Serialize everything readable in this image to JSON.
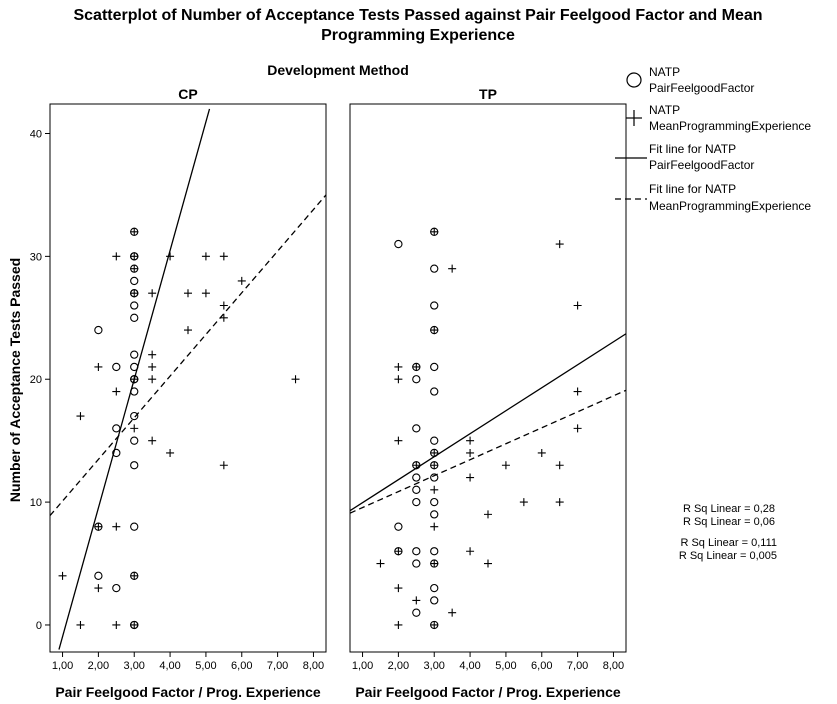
{
  "chart_data": {
    "type": "scatter",
    "title_line1": "Scatterplot of Number of Acceptance Tests Passed against Pair Feelgood Factor and Mean",
    "title_line2": "Programming Experience",
    "facet_label": "Development Method",
    "xlabel": "Pair Feelgood Factor / Prog. Experience",
    "ylabel": "Number of Acceptance Tests Passed",
    "xlim": [
      0.65,
      8.35
    ],
    "ylim": [
      -2.2,
      42.4
    ],
    "xticks": [
      "1,00",
      "2,00",
      "3,00",
      "4,00",
      "5,00",
      "6,00",
      "7,00",
      "8,00"
    ],
    "yticks": [
      "0",
      "10",
      "20",
      "30",
      "40"
    ],
    "legend": {
      "position": "right",
      "items": [
        {
          "line1": "NATP",
          "line2": "PairFeelgoodFactor",
          "marker": "circle"
        },
        {
          "line1": "NATP",
          "line2": "MeanProgrammingExperience",
          "marker": "plus"
        },
        {
          "line1": "Fit line for NATP",
          "line2": "PairFeelgoodFactor",
          "marker": "solid-line"
        },
        {
          "line1": "Fit line for NATP",
          "line2": "MeanProgrammingExperience",
          "marker": "dashed-line"
        }
      ]
    },
    "rsq": [
      "R Sq Linear = 0,28",
      "R Sq Linear = 0,06",
      "R Sq Linear = 0,111",
      "R Sq Linear = 0,005"
    ],
    "panels": [
      {
        "name": "CP",
        "series": [
          {
            "marker": "circle",
            "points": [
              [
                2,
                24
              ],
              [
                2,
                4
              ],
              [
                2,
                8
              ],
              [
                2.5,
                21
              ],
              [
                2.5,
                16
              ],
              [
                2.5,
                14
              ],
              [
                2.5,
                3
              ],
              [
                3,
                32
              ],
              [
                3,
                30
              ],
              [
                3,
                30
              ],
              [
                3,
                29
              ],
              [
                3,
                28
              ],
              [
                3,
                27
              ],
              [
                3,
                27
              ],
              [
                3,
                26
              ],
              [
                3,
                25
              ],
              [
                3,
                22
              ],
              [
                3,
                21
              ],
              [
                3,
                20
              ],
              [
                3,
                20
              ],
              [
                3,
                19
              ],
              [
                3,
                17
              ],
              [
                3,
                15
              ],
              [
                3,
                13
              ],
              [
                3,
                8
              ],
              [
                3,
                4
              ],
              [
                3,
                0
              ],
              [
                3,
                0
              ]
            ]
          },
          {
            "marker": "plus",
            "points": [
              [
                1,
                4
              ],
              [
                1.5,
                17
              ],
              [
                1.5,
                0
              ],
              [
                2,
                21
              ],
              [
                2,
                8
              ],
              [
                2,
                3
              ],
              [
                2.5,
                30
              ],
              [
                2.5,
                19
              ],
              [
                2.5,
                8
              ],
              [
                2.5,
                0
              ],
              [
                3,
                32
              ],
              [
                3,
                30
              ],
              [
                3,
                29
              ],
              [
                3,
                27
              ],
              [
                3,
                20
              ],
              [
                3,
                16
              ],
              [
                3,
                4
              ],
              [
                3,
                0
              ],
              [
                3.5,
                27
              ],
              [
                3.5,
                22
              ],
              [
                3.5,
                21
              ],
              [
                3.5,
                20
              ],
              [
                3.5,
                15
              ],
              [
                4,
                30
              ],
              [
                4,
                14
              ],
              [
                4.5,
                27
              ],
              [
                4.5,
                24
              ],
              [
                5,
                30
              ],
              [
                5,
                27
              ],
              [
                5.5,
                30
              ],
              [
                5.5,
                26
              ],
              [
                5.5,
                25
              ],
              [
                5.5,
                13
              ],
              [
                6,
                28
              ],
              [
                7.5,
                20
              ]
            ]
          }
        ],
        "fits": [
          {
            "style": "solid",
            "from": [
              0.9,
              -2
            ],
            "to": [
              5.1,
              42
            ]
          },
          {
            "style": "dashed",
            "from": [
              0.65,
              8.9
            ],
            "to": [
              8.35,
              35
            ]
          }
        ]
      },
      {
        "name": "TP",
        "series": [
          {
            "marker": "circle",
            "points": [
              [
                2,
                31
              ],
              [
                2,
                8
              ],
              [
                2,
                6
              ],
              [
                2.5,
                21
              ],
              [
                2.5,
                20
              ],
              [
                2.5,
                16
              ],
              [
                2.5,
                13
              ],
              [
                2.5,
                12
              ],
              [
                2.5,
                11
              ],
              [
                2.5,
                10
              ],
              [
                2.5,
                6
              ],
              [
                2.5,
                5
              ],
              [
                2.5,
                1
              ],
              [
                3,
                32
              ],
              [
                3,
                29
              ],
              [
                3,
                26
              ],
              [
                3,
                24
              ],
              [
                3,
                21
              ],
              [
                3,
                19
              ],
              [
                3,
                15
              ],
              [
                3,
                14
              ],
              [
                3,
                13
              ],
              [
                3,
                12
              ],
              [
                3,
                10
              ],
              [
                3,
                9
              ],
              [
                3,
                6
              ],
              [
                3,
                5
              ],
              [
                3,
                3
              ],
              [
                3,
                2
              ],
              [
                3,
                0
              ]
            ]
          },
          {
            "marker": "plus",
            "points": [
              [
                1.5,
                5
              ],
              [
                2,
                21
              ],
              [
                2,
                20
              ],
              [
                2,
                15
              ],
              [
                2,
                6
              ],
              [
                2,
                3
              ],
              [
                2,
                0
              ],
              [
                2.5,
                21
              ],
              [
                2.5,
                13
              ],
              [
                2.5,
                2
              ],
              [
                3,
                32
              ],
              [
                3,
                24
              ],
              [
                3,
                14
              ],
              [
                3,
                13
              ],
              [
                3,
                11
              ],
              [
                3,
                8
              ],
              [
                3,
                5
              ],
              [
                3,
                0
              ],
              [
                3.5,
                29
              ],
              [
                3.5,
                1
              ],
              [
                4,
                15
              ],
              [
                4,
                14
              ],
              [
                4,
                12
              ],
              [
                4,
                6
              ],
              [
                4.5,
                9
              ],
              [
                4.5,
                5
              ],
              [
                5,
                13
              ],
              [
                5.5,
                10
              ],
              [
                6,
                14
              ],
              [
                6.5,
                31
              ],
              [
                6.5,
                13
              ],
              [
                6.5,
                10
              ],
              [
                7,
                26
              ],
              [
                7,
                19
              ],
              [
                7,
                16
              ]
            ]
          }
        ],
        "fits": [
          {
            "style": "solid",
            "from": [
              0.65,
              9.3
            ],
            "to": [
              8.35,
              23.7
            ]
          },
          {
            "style": "dashed",
            "from": [
              0.65,
              9.1
            ],
            "to": [
              8.35,
              19.1
            ]
          }
        ]
      }
    ]
  }
}
